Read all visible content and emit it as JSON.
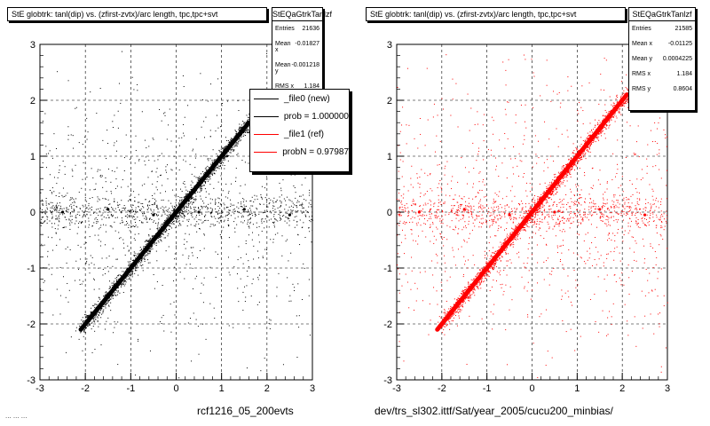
{
  "panels": [
    {
      "title": "StE globtrk: tanl(dip) vs. (zfirst-zvtx)/arc length, tpc,tpc+svt",
      "stats": {
        "name": "StEQaGtrkTanlzf",
        "rows": [
          {
            "label": "Entries",
            "value": "21636"
          },
          {
            "label": "Mean x",
            "value": "-0.01827"
          },
          {
            "label": "Mean y",
            "value": "-0.001218"
          },
          {
            "label": "RMS x",
            "value": "1.184"
          },
          {
            "label": "RMS y",
            "value": ""
          }
        ]
      },
      "xlabel": "rcf1216_05_200evts",
      "color": "#000000",
      "legend": [
        {
          "label": "_file0 (new)",
          "color": "#000000"
        },
        {
          "label": "prob = 1.000000",
          "color": "#000000"
        },
        {
          "label": "_file1 (ref)",
          "color": "#ff0000"
        },
        {
          "label": "probN = 0.97987",
          "color": "#ff0000"
        }
      ]
    },
    {
      "title": "StE globtrk: tanl(dip) vs. (zfirst-zvtx)/arc length, tpc,tpc+svt",
      "stats": {
        "name": "StEQaGtrkTanlzf",
        "rows": [
          {
            "label": "Entries",
            "value": "21585"
          },
          {
            "label": "Mean x",
            "value": "-0.01125"
          },
          {
            "label": "Mean y",
            "value": "0.0004225"
          },
          {
            "label": "RMS x",
            "value": "1.184"
          },
          {
            "label": "RMS y",
            "value": "0.8604"
          }
        ]
      },
      "xlabel": "dev/trs_sl302.ittf/Sat/year_2005/cucu200_minbias/",
      "color": "#ff0000",
      "legend": []
    }
  ],
  "footer_text": "... ... ...",
  "chart_data": [
    {
      "type": "scatter",
      "title": "StE globtrk: tanl(dip) vs. (zfirst-zvtx)/arc length, tpc,tpc+svt",
      "xlabel": "rcf1216_05_200evts",
      "ylabel": "",
      "xlim": [
        -3,
        3
      ],
      "ylim": [
        -3,
        3
      ],
      "xticks": [
        -3,
        -2,
        -1,
        0,
        1,
        2,
        3
      ],
      "yticks": [
        -3,
        -2,
        -1,
        0,
        1,
        2,
        3
      ],
      "grid": true,
      "color": "#000000",
      "series": [
        {
          "name": "_file0 (new)",
          "points": [
            [
              -2.1,
              -2.1
            ],
            [
              -1.8,
              -1.8
            ],
            [
              -1.5,
              -1.5
            ],
            [
              -1.2,
              -1.2
            ],
            [
              -0.9,
              -0.9
            ],
            [
              -0.6,
              -0.6
            ],
            [
              -0.3,
              -0.3
            ],
            [
              0,
              0
            ],
            [
              0.3,
              0.3
            ],
            [
              0.6,
              0.6
            ],
            [
              0.9,
              0.9
            ],
            [
              1.2,
              1.2
            ],
            [
              1.5,
              1.5
            ],
            [
              -2.5,
              0
            ],
            [
              -1.5,
              0.05
            ],
            [
              -0.5,
              -0.05
            ],
            [
              0.5,
              0
            ],
            [
              1.5,
              0.05
            ],
            [
              2.5,
              -0.05
            ]
          ]
        }
      ]
    },
    {
      "type": "scatter",
      "title": "StE globtrk: tanl(dip) vs. (zfirst-zvtx)/arc length, tpc,tpc+svt",
      "xlabel": "dev/trs_sl302.ittf/Sat/year_2005/cucu200_minbias/",
      "ylabel": "",
      "xlim": [
        -3,
        3
      ],
      "ylim": [
        -3,
        3
      ],
      "xticks": [
        -3,
        -2,
        -1,
        0,
        1,
        2,
        3
      ],
      "yticks": [
        -3,
        -2,
        -1,
        0,
        1,
        2,
        3
      ],
      "grid": true,
      "color": "#ff0000",
      "series": [
        {
          "name": "_file1 (ref)",
          "points": [
            [
              -2.1,
              -2.1
            ],
            [
              -1.8,
              -1.8
            ],
            [
              -1.5,
              -1.5
            ],
            [
              -1.2,
              -1.2
            ],
            [
              -0.9,
              -0.9
            ],
            [
              -0.6,
              -0.6
            ],
            [
              -0.3,
              -0.3
            ],
            [
              0,
              0
            ],
            [
              0.3,
              0.3
            ],
            [
              0.6,
              0.6
            ],
            [
              0.9,
              0.9
            ],
            [
              1.2,
              1.2
            ],
            [
              1.5,
              1.5
            ],
            [
              1.8,
              1.8
            ],
            [
              2.1,
              2.1
            ],
            [
              -2.5,
              0
            ],
            [
              -1.5,
              0.05
            ],
            [
              -0.5,
              -0.05
            ],
            [
              0.5,
              0
            ],
            [
              1.5,
              0.05
            ],
            [
              2.5,
              -0.05
            ]
          ]
        }
      ]
    }
  ]
}
